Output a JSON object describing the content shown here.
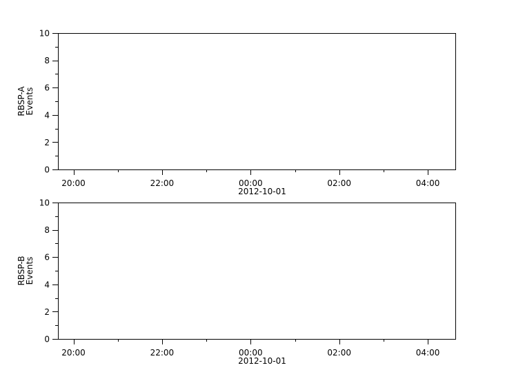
{
  "chart_data": [
    {
      "type": "line",
      "ylabel": [
        "RBSP-A",
        "Events"
      ],
      "ylim": [
        0,
        10
      ],
      "yticks": [
        "0",
        "2",
        "4",
        "6",
        "8",
        "10"
      ],
      "xticks": [
        "20:00",
        "22:00",
        "00:00",
        "02:00",
        "04:00"
      ],
      "xdate_label": "2012-10-01",
      "series": []
    },
    {
      "type": "line",
      "ylabel": [
        "RBSP-B",
        "Events"
      ],
      "ylim": [
        0,
        10
      ],
      "yticks": [
        "0",
        "2",
        "4",
        "6",
        "8",
        "10"
      ],
      "xticks": [
        "20:00",
        "22:00",
        "00:00",
        "02:00",
        "04:00"
      ],
      "xdate_label": "2012-10-01",
      "series": []
    }
  ]
}
